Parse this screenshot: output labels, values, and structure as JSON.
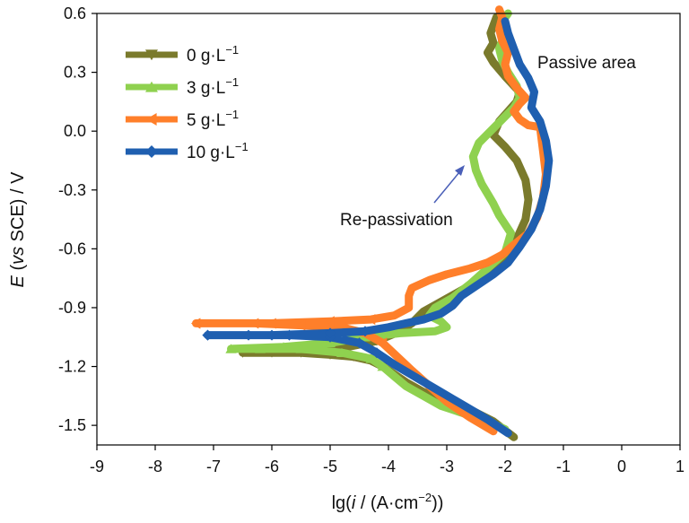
{
  "chart_data": {
    "type": "line",
    "xlabel": {
      "pre": "lg(",
      "var": "i",
      "mid": " / (A·cm",
      "sup": "−2",
      "post": "))"
    },
    "ylabel": {
      "var": "E",
      "pre": " (",
      "vs": "vs",
      "post": " SCE) / V"
    },
    "xlim": [
      -9,
      1
    ],
    "ylim": [
      -1.6,
      0.6
    ],
    "xticks": [
      "-9",
      "-8",
      "-7",
      "-6",
      "-5",
      "-4",
      "-3",
      "-2",
      "-1",
      "0",
      "1"
    ],
    "yticks": [
      "0.6",
      "0.3",
      "0.0",
      "-0.3",
      "-0.6",
      "-0.9",
      "-1.2",
      "-1.5"
    ],
    "grid": false,
    "legend_position": "top-left",
    "annotations": {
      "passive": "Passive area",
      "repassivation": "Re-passivation"
    },
    "series": [
      {
        "name": "0 g·L",
        "unit_sup": "−1",
        "color": "#7a7a2c",
        "marker": "triangle-down",
        "cathodic": [
          [
            -1.85,
            -1.56
          ],
          [
            -2.2,
            -1.48
          ],
          [
            -2.6,
            -1.42
          ],
          [
            -3.0,
            -1.38
          ],
          [
            -3.4,
            -1.33
          ],
          [
            -3.7,
            -1.28
          ],
          [
            -3.9,
            -1.24
          ],
          [
            -4.1,
            -1.2
          ],
          [
            -4.3,
            -1.17
          ],
          [
            -4.6,
            -1.15
          ],
          [
            -5.0,
            -1.14
          ],
          [
            -5.5,
            -1.13
          ],
          [
            -6.0,
            -1.13
          ],
          [
            -6.5,
            -1.13
          ]
        ],
        "anodic": [
          [
            -6.5,
            -1.13
          ],
          [
            -5.5,
            -1.12
          ],
          [
            -4.7,
            -1.1
          ],
          [
            -4.2,
            -1.07
          ],
          [
            -3.8,
            -1.02
          ],
          [
            -3.6,
            -0.98
          ],
          [
            -3.4,
            -0.92
          ],
          [
            -3.1,
            -0.87
          ],
          [
            -2.8,
            -0.82
          ],
          [
            -2.5,
            -0.77
          ],
          [
            -2.2,
            -0.72
          ],
          [
            -1.95,
            -0.65
          ],
          [
            -1.8,
            -0.55
          ],
          [
            -1.65,
            -0.45
          ],
          [
            -1.6,
            -0.35
          ],
          [
            -1.65,
            -0.25
          ],
          [
            -1.8,
            -0.15
          ],
          [
            -2.0,
            -0.08
          ],
          [
            -2.2,
            -0.02
          ],
          [
            -2.1,
            0.05
          ],
          [
            -1.95,
            0.1
          ],
          [
            -1.8,
            0.15
          ],
          [
            -1.75,
            0.2
          ],
          [
            -2.0,
            0.28
          ],
          [
            -2.2,
            0.35
          ],
          [
            -2.3,
            0.4
          ],
          [
            -2.2,
            0.45
          ],
          [
            -2.25,
            0.5
          ],
          [
            -2.15,
            0.58
          ]
        ]
      },
      {
        "name": "3 g·L",
        "unit_sup": "−1",
        "color": "#8fd14f",
        "marker": "triangle-up",
        "cathodic": [
          [
            -2.0,
            -1.52
          ],
          [
            -2.3,
            -1.48
          ],
          [
            -2.7,
            -1.44
          ],
          [
            -3.1,
            -1.4
          ],
          [
            -3.4,
            -1.35
          ],
          [
            -3.7,
            -1.3
          ],
          [
            -3.9,
            -1.25
          ],
          [
            -4.1,
            -1.2
          ],
          [
            -4.3,
            -1.16
          ],
          [
            -4.8,
            -1.13
          ],
          [
            -5.5,
            -1.11
          ],
          [
            -6.2,
            -1.11
          ],
          [
            -6.7,
            -1.11
          ]
        ],
        "anodic": [
          [
            -6.7,
            -1.11
          ],
          [
            -5.8,
            -1.1
          ],
          [
            -5.0,
            -1.08
          ],
          [
            -4.4,
            -1.05
          ],
          [
            -3.8,
            -1.03
          ],
          [
            -3.2,
            -1.02
          ],
          [
            -3.0,
            -1.0
          ],
          [
            -3.1,
            -0.97
          ],
          [
            -3.3,
            -0.94
          ],
          [
            -3.2,
            -0.9
          ],
          [
            -2.9,
            -0.85
          ],
          [
            -2.6,
            -0.78
          ],
          [
            -2.3,
            -0.7
          ],
          [
            -2.0,
            -0.62
          ],
          [
            -1.9,
            -0.52
          ],
          [
            -2.1,
            -0.43
          ],
          [
            -2.2,
            -0.37
          ],
          [
            -2.3,
            -0.32
          ],
          [
            -2.4,
            -0.27
          ],
          [
            -2.5,
            -0.2
          ],
          [
            -2.55,
            -0.13
          ],
          [
            -2.45,
            -0.06
          ],
          [
            -2.25,
            0.0
          ],
          [
            -2.05,
            0.06
          ],
          [
            -1.85,
            0.12
          ],
          [
            -1.75,
            0.17
          ],
          [
            -1.8,
            0.23
          ],
          [
            -1.95,
            0.3
          ],
          [
            -2.05,
            0.36
          ],
          [
            -2.1,
            0.42
          ],
          [
            -2.0,
            0.5
          ],
          [
            -2.05,
            0.56
          ],
          [
            -1.95,
            0.6
          ]
        ]
      },
      {
        "name": "5 g·L",
        "unit_sup": "−1",
        "color": "#ff7f2a",
        "marker": "triangle-left",
        "cathodic": [
          [
            -2.2,
            -1.53
          ],
          [
            -2.6,
            -1.46
          ],
          [
            -3.0,
            -1.38
          ],
          [
            -3.3,
            -1.3
          ],
          [
            -3.6,
            -1.22
          ],
          [
            -3.85,
            -1.15
          ],
          [
            -4.1,
            -1.08
          ],
          [
            -4.4,
            -1.03
          ],
          [
            -4.8,
            -1.0
          ],
          [
            -5.5,
            -0.99
          ],
          [
            -6.3,
            -0.98
          ],
          [
            -7.3,
            -0.98
          ]
        ],
        "anodic": [
          [
            -7.3,
            -0.98
          ],
          [
            -6.0,
            -0.98
          ],
          [
            -5.0,
            -0.97
          ],
          [
            -4.3,
            -0.96
          ],
          [
            -3.9,
            -0.94
          ],
          [
            -3.65,
            -0.9
          ],
          [
            -3.65,
            -0.84
          ],
          [
            -3.6,
            -0.8
          ],
          [
            -3.3,
            -0.76
          ],
          [
            -3.0,
            -0.73
          ],
          [
            -2.6,
            -0.7
          ],
          [
            -2.3,
            -0.67
          ],
          [
            -2.05,
            -0.63
          ],
          [
            -1.85,
            -0.58
          ],
          [
            -1.6,
            -0.52
          ],
          [
            -1.45,
            -0.44
          ],
          [
            -1.35,
            -0.34
          ],
          [
            -1.3,
            -0.22
          ],
          [
            -1.35,
            -0.1
          ],
          [
            -1.4,
            0.02
          ],
          [
            -1.6,
            0.03
          ],
          [
            -1.75,
            0.06
          ],
          [
            -1.85,
            0.1
          ],
          [
            -1.75,
            0.14
          ],
          [
            -1.65,
            0.17
          ],
          [
            -1.8,
            0.22
          ],
          [
            -1.95,
            0.28
          ],
          [
            -2.0,
            0.34
          ],
          [
            -1.95,
            0.4
          ],
          [
            -2.05,
            0.46
          ],
          [
            -2.1,
            0.52
          ],
          [
            -2.05,
            0.58
          ],
          [
            -2.1,
            0.62
          ]
        ]
      },
      {
        "name": "10 g·L",
        "unit_sup": "−1",
        "color": "#1f5fb0",
        "marker": "diamond",
        "cathodic": [
          [
            -1.95,
            -1.54
          ],
          [
            -2.3,
            -1.47
          ],
          [
            -2.7,
            -1.4
          ],
          [
            -3.1,
            -1.33
          ],
          [
            -3.5,
            -1.26
          ],
          [
            -3.9,
            -1.19
          ],
          [
            -4.2,
            -1.13
          ],
          [
            -4.5,
            -1.08
          ],
          [
            -5.0,
            -1.05
          ],
          [
            -5.7,
            -1.04
          ],
          [
            -6.4,
            -1.04
          ],
          [
            -7.1,
            -1.04
          ]
        ],
        "anodic": [
          [
            -7.1,
            -1.04
          ],
          [
            -6.0,
            -1.04
          ],
          [
            -5.0,
            -1.03
          ],
          [
            -4.4,
            -1.02
          ],
          [
            -4.0,
            -1.0
          ],
          [
            -3.7,
            -0.98
          ],
          [
            -3.4,
            -0.96
          ],
          [
            -3.1,
            -0.93
          ],
          [
            -2.9,
            -0.89
          ],
          [
            -2.75,
            -0.84
          ],
          [
            -2.5,
            -0.79
          ],
          [
            -2.2,
            -0.73
          ],
          [
            -1.95,
            -0.67
          ],
          [
            -1.75,
            -0.59
          ],
          [
            -1.55,
            -0.5
          ],
          [
            -1.4,
            -0.4
          ],
          [
            -1.3,
            -0.28
          ],
          [
            -1.25,
            -0.15
          ],
          [
            -1.3,
            -0.05
          ],
          [
            -1.4,
            0.05
          ],
          [
            -1.55,
            0.12
          ],
          [
            -1.5,
            0.2
          ],
          [
            -1.6,
            0.27
          ],
          [
            -1.75,
            0.34
          ],
          [
            -1.85,
            0.42
          ],
          [
            -1.95,
            0.5
          ],
          [
            -2.0,
            0.56
          ]
        ]
      }
    ]
  }
}
